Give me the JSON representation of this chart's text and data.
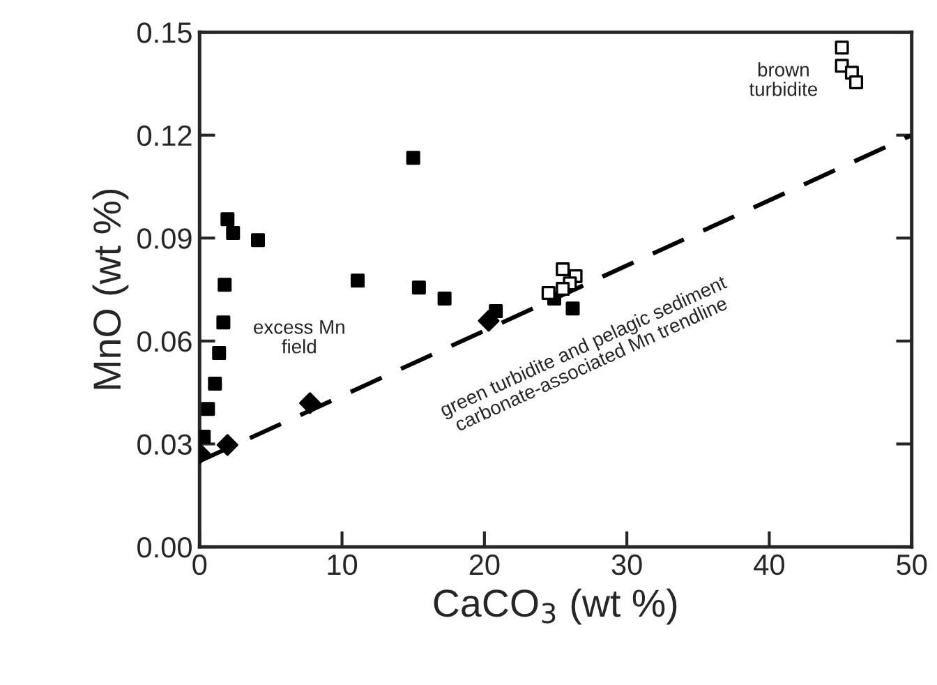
{
  "chart_data": {
    "type": "scatter",
    "xlabel": "CaCO$_{3}$ (wt %)",
    "ylabel": "MnO (wt %)",
    "xlim": [
      0,
      50
    ],
    "xticks": [
      0,
      10,
      20,
      30,
      40,
      50
    ],
    "ylim": [
      0,
      0.15
    ],
    "yticks": [
      {
        "value": 0,
        "label": "0.00"
      },
      {
        "value": 0.03,
        "label": "0.03"
      },
      {
        "value": 0.06,
        "label": "0.06"
      },
      {
        "value": 0.09,
        "label": "0.09"
      },
      {
        "value": 0.12,
        "label": "0.12"
      },
      {
        "value": 0.15,
        "label": "0.15"
      }
    ],
    "grid": false,
    "legend": false,
    "series": [
      {
        "type": "line",
        "color": "#000000",
        "marker": "none",
        "line_style": "dashed",
        "x": [
          0,
          50
        ],
        "values": [
          0.025,
          0.12
        ]
      },
      {
        "color": "#000000",
        "marker": "square",
        "x": [
          1.96,
          2.35,
          4.1,
          1.76,
          1.67,
          1.37,
          1.08,
          0.59,
          0.29,
          11.1,
          15.0,
          15.4,
          17.2,
          20.8,
          24.9,
          26.2
        ],
        "values": [
          0.0955,
          0.0915,
          0.0894,
          0.0764,
          0.0654,
          0.0565,
          0.0476,
          0.0402,
          0.0321,
          0.0776,
          0.1134,
          0.0756,
          0.0724,
          0.0687,
          0.0724,
          0.0695
        ]
      },
      {
        "color": "#000000",
        "marker": "square",
        "x": [
          25.5,
          26.4,
          26.0,
          24.5,
          25.5,
          45.1,
          45.1,
          45.8,
          46.1
        ],
        "values": [
          0.0809,
          0.0789,
          0.0768,
          0.074,
          0.0752,
          0.1455,
          0.1402,
          0.1382,
          0.1354
        ]
      },
      {
        "color": "#000000",
        "marker": "diamond",
        "x": [
          0,
          1.96,
          7.75,
          20.3
        ],
        "values": [
          0.0272,
          0.0297,
          0.0419,
          0.0659
        ]
      }
    ],
    "annotations": [
      "excess Mn\nfield",
      "brown\nturbidite",
      "green turbidite and pelagic sediment\ncarbonate-associated Mn trendline"
    ]
  }
}
